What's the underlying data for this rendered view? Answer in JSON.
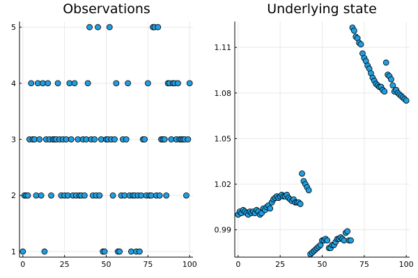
{
  "chart_data": [
    {
      "type": "scatter",
      "title": "Observations",
      "xlabel": "",
      "ylabel": "",
      "xlim": [
        -2,
        102
      ],
      "ylim": [
        0.9,
        5.1
      ],
      "xticks": [
        0,
        25,
        50,
        75,
        100
      ],
      "xtick_labels": [
        "0",
        "25",
        "50",
        "75",
        "100"
      ],
      "yticks": [
        1,
        2,
        3,
        4,
        5
      ],
      "ytick_labels": [
        "1",
        "2",
        "3",
        "4",
        "5"
      ],
      "grid": true,
      "color": "#1f9ee0",
      "series": [
        {
          "x": [
            0,
            1,
            2,
            3,
            4,
            5,
            6,
            7,
            8,
            9,
            10,
            11,
            12,
            13,
            14,
            15,
            16,
            17,
            18,
            19,
            20,
            21,
            22,
            23,
            24,
            25,
            26,
            27,
            28,
            29,
            30,
            31,
            32,
            33,
            34,
            35,
            36,
            37,
            38,
            39,
            40,
            41,
            42,
            43,
            44,
            45,
            46,
            47,
            48,
            49,
            50,
            51,
            52,
            53,
            54,
            55,
            56,
            57,
            58,
            59,
            60,
            61,
            62,
            63,
            64,
            65,
            66,
            67,
            68,
            69,
            70,
            71,
            72,
            73,
            74,
            75,
            76,
            77,
            78,
            79,
            80,
            81,
            82,
            83,
            84,
            85,
            86,
            87,
            88,
            89,
            90,
            91,
            92,
            93,
            94,
            95,
            96,
            97,
            98,
            99,
            100
          ],
          "y": [
            1,
            2,
            2,
            2,
            3,
            4,
            3,
            3,
            2,
            4,
            3,
            2,
            4,
            1,
            3,
            4,
            3,
            2,
            3,
            3,
            3,
            4,
            3,
            2,
            3,
            2,
            3,
            2,
            4,
            3,
            2,
            4,
            2,
            3,
            2,
            2,
            3,
            2,
            3,
            4,
            5,
            3,
            2,
            3,
            2,
            5,
            2,
            3,
            1,
            1,
            3,
            3,
            5,
            3,
            2,
            3,
            4,
            1,
            1,
            2,
            3,
            2,
            3,
            4,
            2,
            1,
            2,
            2,
            1,
            2,
            1,
            2,
            3,
            3,
            2,
            4,
            2,
            2,
            5,
            5,
            2,
            5,
            2,
            3,
            3,
            3,
            2,
            4,
            4,
            3,
            4,
            4,
            3,
            4,
            3,
            3,
            3,
            3,
            2,
            3,
            4
          ]
        }
      ]
    },
    {
      "type": "scatter",
      "title": "Underlying state",
      "xlabel": "",
      "ylabel": "",
      "xlim": [
        -2,
        102
      ],
      "ylim": [
        0.972,
        1.127
      ],
      "xticks": [
        0,
        25,
        50,
        75,
        100
      ],
      "xtick_labels": [
        "0",
        "25",
        "50",
        "75",
        "100"
      ],
      "yticks": [
        0.99,
        1.02,
        1.05,
        1.08,
        1.11
      ],
      "ytick_labels": [
        "0.99",
        "1.02",
        "1.05",
        "1.08",
        "1.11"
      ],
      "grid": true,
      "color": "#1f9ee0",
      "series": [
        {
          "x": [
            0,
            1,
            2,
            3,
            4,
            5,
            6,
            7,
            8,
            9,
            10,
            11,
            12,
            13,
            14,
            15,
            16,
            17,
            18,
            19,
            20,
            21,
            22,
            23,
            24,
            25,
            26,
            27,
            28,
            29,
            30,
            31,
            32,
            33,
            34,
            35,
            36,
            37,
            38,
            39,
            40,
            41,
            42,
            43,
            44,
            45,
            46,
            47,
            48,
            49,
            50,
            51,
            52,
            53,
            54,
            55,
            56,
            57,
            58,
            59,
            60,
            61,
            62,
            63,
            64,
            65,
            66,
            67,
            68,
            69,
            70,
            71,
            72,
            73,
            74,
            75,
            76,
            77,
            78,
            79,
            80,
            81,
            82,
            83,
            84,
            85,
            86,
            87,
            88,
            89,
            90,
            91,
            92,
            93,
            94,
            95,
            96,
            97,
            98,
            99,
            100
          ],
          "y": [
            1.0,
            1.002,
            1.001,
            1.003,
            1.002,
            1.001,
            1.0,
            1.002,
            1.001,
            1.002,
            1.001,
            1.003,
            1.002,
            1.0,
            1.001,
            1.004,
            1.003,
            1.005,
            1.006,
            1.004,
            1.008,
            1.01,
            1.011,
            1.012,
            1.011,
            1.012,
            1.013,
            1.012,
            1.012,
            1.013,
            1.011,
            1.01,
            1.009,
            1.01,
            1.008,
            1.008,
            1.008,
            1.007,
            1.027,
            1.022,
            1.02,
            1.018,
            1.016,
            0.974,
            0.975,
            0.976,
            0.977,
            0.978,
            0.979,
            0.98,
            0.983,
            0.983,
            0.984,
            0.983,
            0.978,
            0.978,
            0.98,
            0.98,
            0.982,
            0.984,
            0.984,
            0.985,
            0.984,
            0.983,
            0.988,
            0.989,
            0.983,
            0.983,
            1.123,
            1.121,
            1.117,
            1.116,
            1.113,
            1.112,
            1.106,
            1.103,
            1.101,
            1.098,
            1.096,
            1.093,
            1.09,
            1.088,
            1.086,
            1.085,
            1.084,
            1.084,
            1.082,
            1.081,
            1.1,
            1.092,
            1.091,
            1.089,
            1.085,
            1.081,
            1.082,
            1.08,
            1.079,
            1.078,
            1.077,
            1.076,
            1.075
          ]
        }
      ]
    }
  ]
}
